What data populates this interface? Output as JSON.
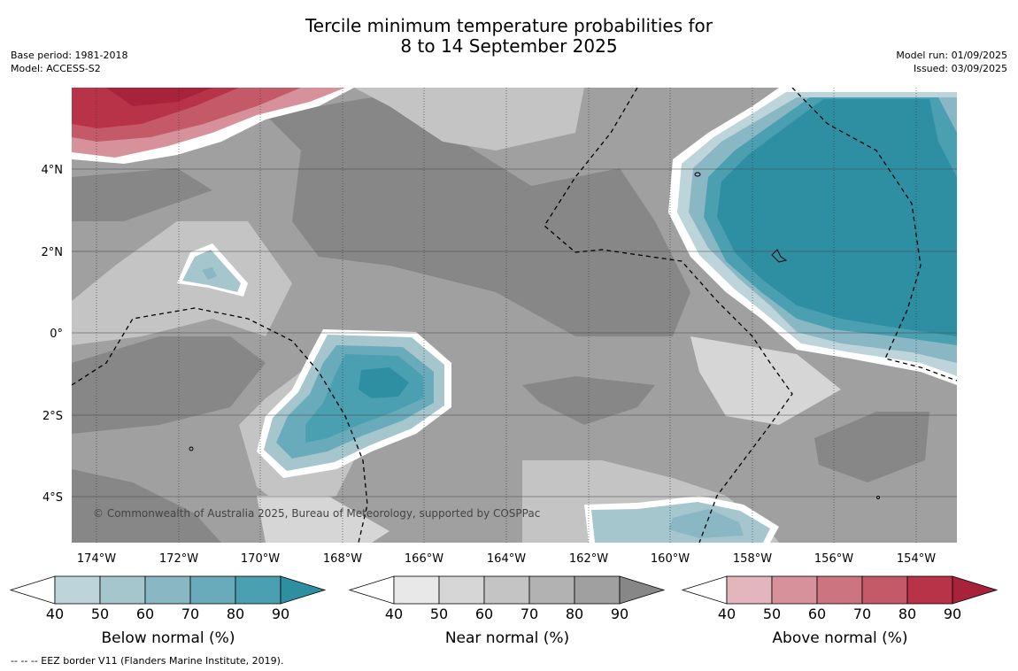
{
  "title": {
    "line1": "Tercile minimum temperature probabilities for",
    "line2": "8 to 14 September 2025"
  },
  "meta_left": {
    "base_period": "Base period: 1981-2018",
    "model": "Model: ACCESS-S2"
  },
  "meta_right": {
    "model_run": "Model run: 01/09/2025",
    "issued": "Issued: 03/09/2025"
  },
  "map": {
    "longitude_labels": [
      "174°W",
      "172°W",
      "170°W",
      "168°W",
      "166°W",
      "164°W",
      "162°W",
      "160°W",
      "158°W",
      "156°W",
      "154°W"
    ],
    "latitude_labels": [
      "4°N",
      "2°N",
      "0°",
      "2°S",
      "4°S"
    ],
    "copyright": "© Commonwealth of Australia 2025, Bureau of Meteorology, supported by COSPPac"
  },
  "colorbars": [
    {
      "label": "Below normal (%)",
      "ticks": [
        "40",
        "50",
        "60",
        "70",
        "80",
        "90"
      ],
      "colors": [
        "#bcd4da",
        "#a6c6cd",
        "#8ab7c4",
        "#6aabbb",
        "#4a9fb1",
        "#2e8fa3"
      ]
    },
    {
      "label": "Near normal (%)",
      "ticks": [
        "40",
        "50",
        "60",
        "70",
        "80",
        "90"
      ],
      "colors": [
        "#e8e8e8",
        "#d6d6d6",
        "#c4c4c4",
        "#b2b2b2",
        "#a0a0a0",
        "#878787"
      ]
    },
    {
      "label": "Above normal (%)",
      "ticks": [
        "40",
        "50",
        "60",
        "70",
        "80",
        "90"
      ],
      "colors": [
        "#e2b6bc",
        "#d7919b",
        "#cc747f",
        "#c45a68",
        "#b83248",
        "#a8223a"
      ]
    }
  ],
  "footnote": "--  --  -- EEZ border V11 (Flanders Marine Institute, 2019)."
}
